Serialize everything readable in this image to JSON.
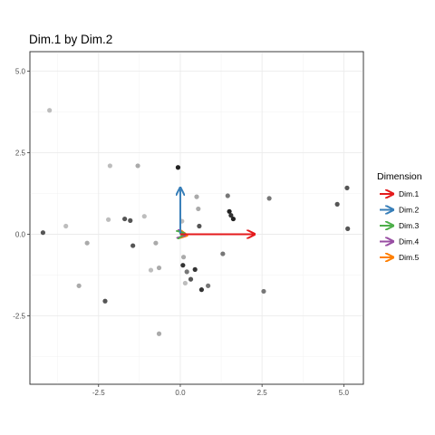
{
  "chart_data": {
    "type": "scatter",
    "title": "Dim.1 by Dim.2",
    "xlabel": "",
    "ylabel": "",
    "xlim": [
      -4.6,
      5.6
    ],
    "ylim": [
      -4.6,
      5.6
    ],
    "x_ticks": [
      -2.5,
      0.0,
      2.5,
      5.0
    ],
    "x_tick_labels": [
      "-2.5",
      "0.0",
      "2.5",
      "5.0"
    ],
    "y_ticks": [
      -2.5,
      0.0,
      2.5,
      5.0
    ],
    "y_tick_labels": [
      "-2.5",
      "0.0",
      "2.5",
      "5.0"
    ],
    "grid": true,
    "legend": {
      "title": "Dimension",
      "position": "right",
      "entries": [
        {
          "name": "Dim.1",
          "color": "#e41a1c"
        },
        {
          "name": "Dim.2",
          "color": "#377eb8"
        },
        {
          "name": "Dim.3",
          "color": "#4daf4a"
        },
        {
          "name": "Dim.4",
          "color": "#984ea3"
        },
        {
          "name": "Dim.5",
          "color": "#ff7f00"
        }
      ]
    },
    "vectors": [
      {
        "name": "Dim.1",
        "x": 2.25,
        "y": 0.0,
        "color": "#e41a1c"
      },
      {
        "name": "Dim.2",
        "x": 0.0,
        "y": 1.4,
        "color": "#377eb8"
      },
      {
        "name": "Dim.3",
        "x": 0.1,
        "y": 0.02,
        "color": "#4daf4a"
      },
      {
        "name": "Dim.4",
        "x": 0.12,
        "y": -0.02,
        "color": "#984ea3"
      },
      {
        "name": "Dim.5",
        "x": 0.18,
        "y": -0.03,
        "color": "#ff7f00"
      }
    ],
    "points": [
      {
        "x": -4.0,
        "y": 3.8,
        "color": "#bdbdbd"
      },
      {
        "x": -4.2,
        "y": 0.05,
        "color": "#555555"
      },
      {
        "x": -3.5,
        "y": 0.25,
        "color": "#bdbdbd"
      },
      {
        "x": -2.85,
        "y": -0.27,
        "color": "#aaaaaa"
      },
      {
        "x": -3.1,
        "y": -1.58,
        "color": "#aaaaaa"
      },
      {
        "x": -2.3,
        "y": -2.05,
        "color": "#555555"
      },
      {
        "x": -2.15,
        "y": 2.1,
        "color": "#bdbdbd"
      },
      {
        "x": -2.2,
        "y": 0.45,
        "color": "#bdbdbd"
      },
      {
        "x": -1.7,
        "y": 0.47,
        "color": "#555555"
      },
      {
        "x": -1.53,
        "y": 0.42,
        "color": "#555555"
      },
      {
        "x": -1.45,
        "y": -0.35,
        "color": "#555555"
      },
      {
        "x": -1.3,
        "y": 2.1,
        "color": "#aaaaaa"
      },
      {
        "x": -1.1,
        "y": 0.55,
        "color": "#bdbdbd"
      },
      {
        "x": -0.9,
        "y": -1.1,
        "color": "#bdbdbd"
      },
      {
        "x": -0.75,
        "y": -0.27,
        "color": "#aaaaaa"
      },
      {
        "x": -0.65,
        "y": -1.03,
        "color": "#aaaaaa"
      },
      {
        "x": -0.65,
        "y": -3.05,
        "color": "#aaaaaa"
      },
      {
        "x": -0.07,
        "y": 2.05,
        "color": "#222222"
      },
      {
        "x": 0.05,
        "y": 0.4,
        "color": "#bdbdbd"
      },
      {
        "x": 0.08,
        "y": -0.95,
        "color": "#333333"
      },
      {
        "x": 0.1,
        "y": -0.7,
        "color": "#aaaaaa"
      },
      {
        "x": 0.15,
        "y": -1.5,
        "color": "#bdbdbd"
      },
      {
        "x": 0.2,
        "y": -1.15,
        "color": "#777777"
      },
      {
        "x": 0.32,
        "y": -1.38,
        "color": "#555555"
      },
      {
        "x": 0.45,
        "y": -1.08,
        "color": "#333333"
      },
      {
        "x": 0.5,
        "y": 1.15,
        "color": "#aaaaaa"
      },
      {
        "x": 0.55,
        "y": 0.78,
        "color": "#aaaaaa"
      },
      {
        "x": 0.58,
        "y": 0.25,
        "color": "#555555"
      },
      {
        "x": 0.65,
        "y": -1.7,
        "color": "#333333"
      },
      {
        "x": 0.85,
        "y": -1.58,
        "color": "#777777"
      },
      {
        "x": 1.3,
        "y": -0.6,
        "color": "#777777"
      },
      {
        "x": 1.45,
        "y": 1.18,
        "color": "#777777"
      },
      {
        "x": 1.5,
        "y": 0.7,
        "color": "#222222"
      },
      {
        "x": 1.55,
        "y": 0.58,
        "color": "#333333"
      },
      {
        "x": 1.62,
        "y": 0.47,
        "color": "#222222"
      },
      {
        "x": 2.55,
        "y": -1.75,
        "color": "#777777"
      },
      {
        "x": 2.72,
        "y": 1.1,
        "color": "#777777"
      },
      {
        "x": 4.8,
        "y": 0.92,
        "color": "#555555"
      },
      {
        "x": 5.1,
        "y": 1.42,
        "color": "#555555"
      },
      {
        "x": 5.12,
        "y": 0.17,
        "color": "#555555"
      }
    ]
  }
}
